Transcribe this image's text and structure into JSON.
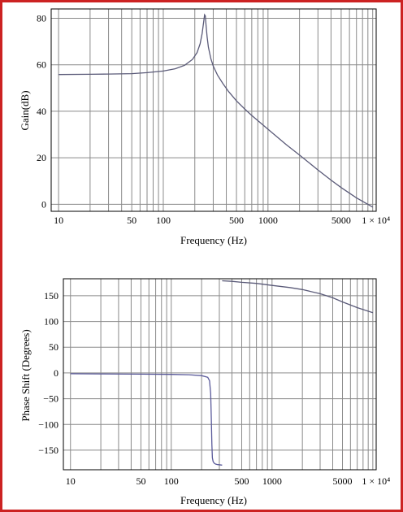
{
  "chart_data": [
    {
      "type": "line",
      "xscale": "log",
      "xlim": [
        8.5,
        10800
      ],
      "ylim": [
        -3,
        84
      ],
      "xlabel": "Frequency (Hz)",
      "ylabel": "Gain(dB)",
      "grid": true,
      "x_ticks": [
        10,
        50,
        100,
        500,
        1000,
        5000,
        10000
      ],
      "x_tick_labels": [
        "10",
        "50",
        "100",
        "500",
        "1000",
        "5000",
        "1 × 10⁴"
      ],
      "y_ticks": [
        0,
        20,
        40,
        60,
        80
      ],
      "y_tick_labels": [
        "0",
        "20",
        "40",
        "60",
        "80"
      ],
      "series": [
        {
          "color": "#5a5a78",
          "x": [
            10,
            20,
            30,
            50,
            70,
            100,
            130,
            160,
            190,
            210,
            225,
            235,
            243,
            248,
            252,
            256,
            262,
            270,
            285,
            300,
            330,
            370,
            420,
            500,
            600,
            700,
            850,
            1000,
            1500,
            2000,
            3000,
            4000,
            5000,
            7000,
            10000
          ],
          "y": [
            55.8,
            55.9,
            56.0,
            56.2,
            56.6,
            57.3,
            58.3,
            59.8,
            62.3,
            65.2,
            69.0,
            73.5,
            78.5,
            81.5,
            81.0,
            77.0,
            72.0,
            67.5,
            62.5,
            59.5,
            55.5,
            52.0,
            48.5,
            44.5,
            41.0,
            38.2,
            35.0,
            32.3,
            25.6,
            21.2,
            14.8,
            10.4,
            7.2,
            2.8,
            -1.2
          ]
        }
      ]
    },
    {
      "type": "line",
      "xscale": "log",
      "xlim": [
        8.5,
        10800
      ],
      "ylim": [
        -188,
        183
      ],
      "xlabel": "Frequency (Hz)",
      "ylabel": "Phase Shift (Degrees)",
      "grid": true,
      "x_ticks": [
        10,
        50,
        100,
        500,
        1000,
        5000,
        10000
      ],
      "x_tick_labels": [
        "10",
        "50",
        "100",
        "500",
        "1000",
        "5000",
        "1 × 10⁴"
      ],
      "y_ticks": [
        -150,
        -100,
        -50,
        0,
        50,
        100,
        150
      ],
      "y_tick_labels": [
        "−150",
        "−100",
        "−50",
        "0",
        "50",
        "100",
        "150"
      ],
      "series": [
        {
          "color": "#5a5a9a",
          "x": [
            10,
            20,
            50,
            100,
            150,
            200,
            230,
            240,
            246,
            250,
            253,
            256,
            260,
            266,
            275,
            290,
            320
          ],
          "y": [
            -1.5,
            -1.8,
            -2.3,
            -2.8,
            -3.5,
            -5.2,
            -8.5,
            -15,
            -40,
            -90,
            -140,
            -165,
            -172,
            -175,
            -177,
            -178,
            -179
          ]
        },
        {
          "color": "#5a5a78",
          "x": [
            320,
            400,
            500,
            700,
            1000,
            1500,
            2000,
            3000,
            4000,
            5000,
            7000,
            10000
          ],
          "y": [
            179,
            178,
            176,
            174,
            170,
            166,
            162,
            154,
            146,
            138,
            127,
            117
          ]
        }
      ]
    }
  ]
}
